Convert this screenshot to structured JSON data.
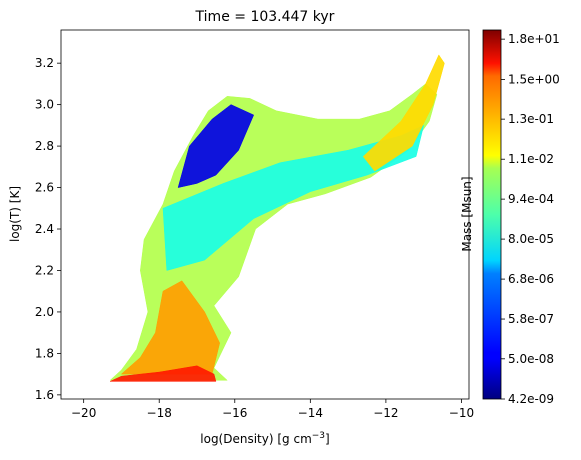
{
  "chart_data": {
    "type": "heatmap",
    "title": "Time = 103.447 kyr",
    "xlabel": "log(Density) [g cm",
    "xlabel_superscript": "−3",
    "xlabel_suffix": "]",
    "ylabel": "log(T) [K]",
    "xlim": [
      -20.6,
      -9.8
    ],
    "ylim": [
      1.58,
      3.36
    ],
    "x_ticks": [
      -20,
      -18,
      -16,
      -14,
      -12,
      -10
    ],
    "y_ticks": [
      1.6,
      1.8,
      2.0,
      2.2,
      2.4,
      2.6,
      2.8,
      3.0,
      3.2
    ],
    "colormap": "jet",
    "colorbar": {
      "label": "Mass [Msun]",
      "scale": "log",
      "tick_labels": [
        "4.2e-09",
        "5.0e-08",
        "5.8e-07",
        "6.8e-06",
        "8.0e-05",
        "9.4e-04",
        "1.1e-02",
        "1.3e-01",
        "1.5e+00",
        "1.8e+01"
      ],
      "ticks_log10": [
        -8.3768,
        -7.301,
        -6.2366,
        -5.1675,
        -4.0969,
        -3.0269,
        -1.9586,
        -0.8861,
        0.1761,
        1.2553
      ],
      "range_log10": [
        -8.3768,
        1.5
      ]
    },
    "regions": [
      {
        "name": "main-wedge",
        "level": 0.55,
        "polygon": [
          [
            -19.3,
            1.67
          ],
          [
            -16.2,
            1.67
          ],
          [
            -16.55,
            1.73
          ],
          [
            -16.1,
            1.9
          ],
          [
            -16.55,
            2.03
          ],
          [
            -15.9,
            2.17
          ],
          [
            -15.45,
            2.4
          ],
          [
            -14.6,
            2.52
          ],
          [
            -13.6,
            2.57
          ],
          [
            -12.4,
            2.65
          ],
          [
            -11.4,
            2.78
          ],
          [
            -10.85,
            2.92
          ],
          [
            -10.65,
            3.05
          ],
          [
            -10.95,
            3.1
          ],
          [
            -11.3,
            3.05
          ],
          [
            -11.9,
            2.97
          ],
          [
            -12.7,
            2.93
          ],
          [
            -13.8,
            2.93
          ],
          [
            -14.9,
            2.97
          ],
          [
            -15.6,
            3.03
          ],
          [
            -16.2,
            3.04
          ],
          [
            -16.7,
            2.97
          ],
          [
            -17.1,
            2.85
          ],
          [
            -17.6,
            2.68
          ],
          [
            -17.9,
            2.52
          ],
          [
            -18.4,
            2.35
          ],
          [
            -18.5,
            2.2
          ],
          [
            -18.3,
            2.0
          ],
          [
            -18.6,
            1.82
          ],
          [
            -19.0,
            1.72
          ]
        ]
      },
      {
        "name": "cool-upper-left",
        "level": 0.1,
        "polygon": [
          [
            -17.2,
            2.8
          ],
          [
            -16.6,
            2.93
          ],
          [
            -16.1,
            3.0
          ],
          [
            -15.5,
            2.95
          ],
          [
            -15.9,
            2.78
          ],
          [
            -16.5,
            2.66
          ],
          [
            -17.0,
            2.62
          ],
          [
            -17.5,
            2.6
          ]
        ]
      },
      {
        "name": "cyan-band",
        "level": 0.4,
        "polygon": [
          [
            -17.9,
            2.5
          ],
          [
            -16.3,
            2.62
          ],
          [
            -14.8,
            2.72
          ],
          [
            -13.0,
            2.78
          ],
          [
            -11.6,
            2.85
          ],
          [
            -11.0,
            2.9
          ],
          [
            -11.2,
            2.75
          ],
          [
            -12.5,
            2.66
          ],
          [
            -14.0,
            2.58
          ],
          [
            -15.5,
            2.45
          ],
          [
            -16.8,
            2.25
          ],
          [
            -17.8,
            2.2
          ]
        ]
      },
      {
        "name": "yellow-lower",
        "level": 0.72,
        "polygon": [
          [
            -19.0,
            1.7
          ],
          [
            -16.6,
            1.7
          ],
          [
            -16.4,
            1.85
          ],
          [
            -16.8,
            2.0
          ],
          [
            -17.4,
            2.15
          ],
          [
            -17.9,
            2.1
          ],
          [
            -18.1,
            1.9
          ],
          [
            -18.5,
            1.78
          ]
        ]
      },
      {
        "name": "orange-base",
        "level": 0.85,
        "polygon": [
          [
            -19.3,
            1.665
          ],
          [
            -16.5,
            1.665
          ],
          [
            -16.55,
            1.7
          ],
          [
            -17.0,
            1.74
          ],
          [
            -18.0,
            1.71
          ],
          [
            -19.0,
            1.69
          ]
        ]
      },
      {
        "name": "hot-tail",
        "level": 0.66,
        "polygon": [
          [
            -12.3,
            2.68
          ],
          [
            -11.3,
            2.8
          ],
          [
            -10.75,
            3.0
          ],
          [
            -10.45,
            3.2
          ],
          [
            -10.6,
            3.24
          ],
          [
            -10.95,
            3.1
          ],
          [
            -11.6,
            2.92
          ],
          [
            -12.6,
            2.75
          ]
        ]
      }
    ]
  }
}
